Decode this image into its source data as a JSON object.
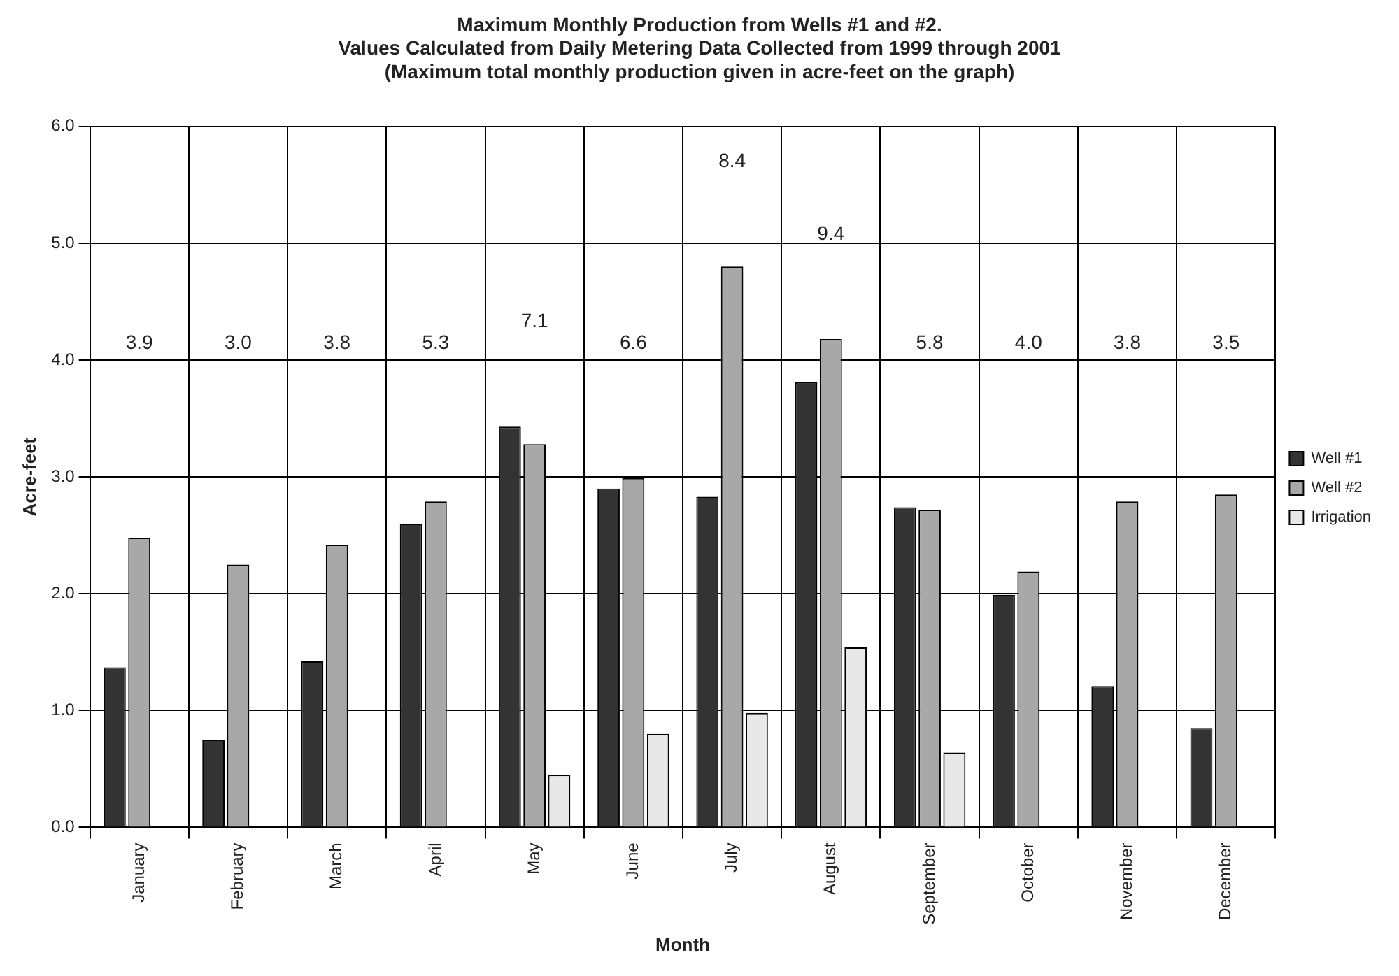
{
  "chart_data": {
    "type": "bar",
    "title": "Maximum Monthly Production from Wells #1 and #2.\nValues Calculated from Daily Metering Data Collected from 1999 through 2001\n(Maximum total monthly production given in acre-feet on the graph)",
    "xlabel": "Month",
    "ylabel": "Acre-feet",
    "categories": [
      "January",
      "February",
      "March",
      "April",
      "May",
      "June",
      "July",
      "August",
      "September",
      "October",
      "November",
      "December"
    ],
    "series": [
      {
        "name": "Well #1",
        "color": "#333333",
        "values": [
          1.37,
          0.75,
          1.42,
          2.6,
          3.43,
          2.9,
          2.83,
          3.81,
          2.74,
          1.99,
          1.21,
          0.85
        ]
      },
      {
        "name": "Well #2",
        "color": "#a8a8a8",
        "values": [
          2.48,
          2.25,
          2.42,
          2.79,
          3.28,
          2.99,
          4.8,
          4.18,
          2.72,
          2.19,
          2.79,
          2.85
        ]
      },
      {
        "name": "Irrigation",
        "color": "#e8e8e8",
        "values": [
          null,
          null,
          null,
          null,
          0.45,
          0.8,
          0.98,
          1.54,
          0.64,
          null,
          null,
          null
        ]
      }
    ],
    "annotations": [
      "3.9",
      "3.0",
      "3.8",
      "5.3",
      "7.1",
      "6.6",
      "8.4",
      "9.4",
      "5.8",
      "4.0",
      "3.8",
      "3.5"
    ],
    "ylim": [
      0,
      6
    ],
    "yticks": [
      {
        "value": 0,
        "label": "0.0"
      },
      {
        "value": 1,
        "label": "1.0"
      },
      {
        "value": 2,
        "label": "2.0"
      },
      {
        "value": 3,
        "label": "3.0"
      },
      {
        "value": 4,
        "label": "4.0"
      },
      {
        "value": 5,
        "label": "5.0"
      },
      {
        "value": 6,
        "label": "6.0"
      }
    ],
    "grid": true,
    "legend": "right"
  }
}
